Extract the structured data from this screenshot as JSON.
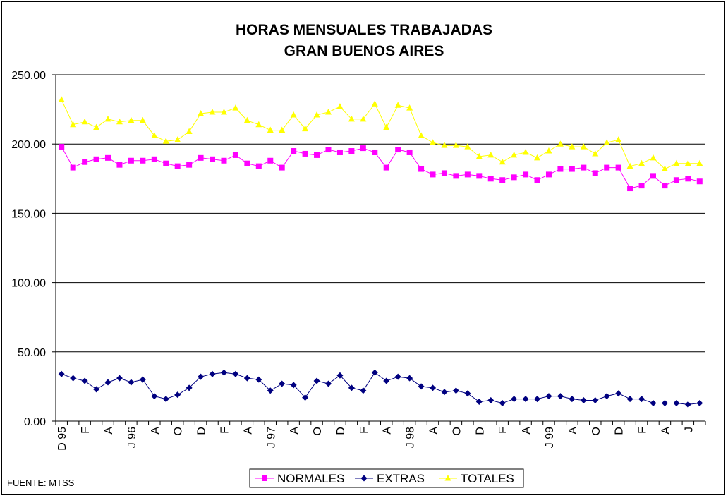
{
  "chart_data": {
    "type": "line",
    "title": [
      "HORAS MENSUALES TRABAJADAS",
      "GRAN BUENOS AIRES"
    ],
    "xlabel": "",
    "ylabel": "",
    "ylim": [
      0,
      250
    ],
    "y_ticks": [
      "0.00",
      "50.00",
      "100.00",
      "150.00",
      "200.00",
      "250.00"
    ],
    "grid": "horizontal",
    "legend_position": "bottom",
    "categories": [
      "D 95",
      "",
      "F",
      "",
      "A",
      "",
      "J 96",
      "",
      "A",
      "",
      "O",
      "",
      "D",
      "",
      "F",
      "",
      "A",
      "",
      "J 97",
      "",
      "A",
      "",
      "O",
      "",
      "D",
      "",
      "F",
      "",
      "A",
      "",
      "J 98",
      "",
      "A",
      "",
      "O",
      "",
      "D",
      "",
      "F",
      "",
      "A",
      "",
      "J 99",
      "",
      "A",
      "",
      "O",
      "",
      "D",
      "",
      "F",
      "",
      "A",
      "",
      "J",
      ""
    ],
    "series": [
      {
        "name": "NORMALES",
        "color": "#FF00FF",
        "marker": "square",
        "values": [
          198,
          183,
          187,
          189,
          190,
          185,
          188,
          188,
          189,
          186,
          184,
          185,
          190,
          189,
          188,
          192,
          186,
          184,
          188,
          183,
          195,
          193,
          192,
          196,
          194,
          195,
          197,
          194,
          183,
          196,
          194,
          182,
          178,
          179,
          177,
          178,
          177,
          175,
          174,
          176,
          178,
          174,
          178,
          182,
          182,
          183,
          179,
          183,
          183,
          168,
          170,
          177,
          170,
          174,
          175,
          173
        ]
      },
      {
        "name": "EXTRAS",
        "color": "#000080",
        "marker": "diamond",
        "values": [
          34,
          31,
          29,
          23,
          28,
          31,
          28,
          30,
          18,
          16,
          19,
          24,
          32,
          34,
          35,
          34,
          31,
          30,
          22,
          27,
          26,
          17,
          29,
          27,
          33,
          24,
          22,
          35,
          29,
          32,
          31,
          25,
          24,
          21,
          22,
          20,
          14,
          15,
          13,
          16,
          16,
          16,
          18,
          18,
          16,
          15,
          15,
          18,
          20,
          16,
          16,
          13,
          13,
          13,
          12,
          13
        ]
      },
      {
        "name": "TOTALES",
        "color": "#FFFF00",
        "marker": "triangle",
        "values": [
          232,
          214,
          216,
          212,
          218,
          216,
          217,
          217,
          206,
          202,
          203,
          209,
          222,
          223,
          223,
          226,
          217,
          214,
          210,
          210,
          221,
          211,
          221,
          223,
          227,
          218,
          218,
          229,
          212,
          228,
          226,
          206,
          201,
          199,
          199,
          198,
          191,
          192,
          187,
          192,
          194,
          190,
          195,
          200,
          198,
          198,
          193,
          201,
          203,
          184,
          186,
          190,
          182,
          186,
          186,
          186
        ]
      }
    ]
  },
  "source_label": "FUENTE: MTSS",
  "legend": [
    "NORMALES",
    "EXTRAS",
    "TOTALES"
  ]
}
